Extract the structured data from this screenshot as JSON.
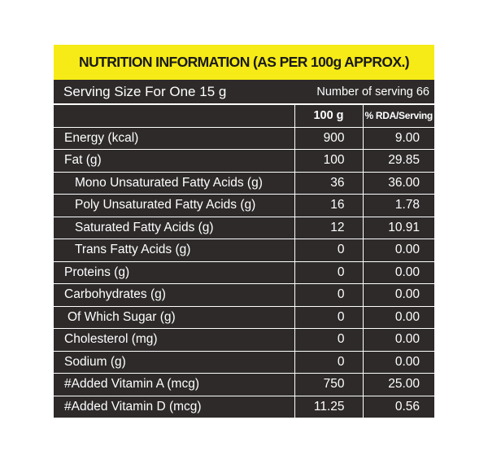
{
  "header": {
    "title": "NUTRITION INFORMATION (AS PER 100g APPROX.)"
  },
  "serving": {
    "size": "Serving Size For One 15 g",
    "count": "Number of serving 66"
  },
  "table": {
    "columns": [
      "100 g",
      "% RDA/Serving"
    ],
    "rows": [
      [
        "Energy (kcal)",
        "900",
        "9.00"
      ],
      [
        "Fat (g)",
        "100",
        "29.85"
      ],
      [
        "Mono Unsaturated Fatty Acids (g)",
        "36",
        "36.00"
      ],
      [
        "Poly Unsaturated Fatty Acids (g)",
        "16",
        "1.78"
      ],
      [
        "Saturated Fatty Acids (g)",
        "12",
        "10.91"
      ],
      [
        "Trans Fatty Acids (g)",
        "0",
        "0.00"
      ],
      [
        "Proteins (g)",
        "0",
        "0.00"
      ],
      [
        "Carbohydrates (g)",
        "0",
        "0.00"
      ],
      [
        "Of Which Sugar (g)",
        "0",
        "0.00"
      ],
      [
        "Cholesterol (mg)",
        "0",
        "0.00"
      ],
      [
        "Sodium (g)",
        "0",
        "0.00"
      ],
      [
        "#Added Vitamin A (mcg)",
        "750",
        "25.00"
      ],
      [
        "#Added Vitamin D (mcg)",
        "11.25",
        "0.56"
      ]
    ]
  }
}
